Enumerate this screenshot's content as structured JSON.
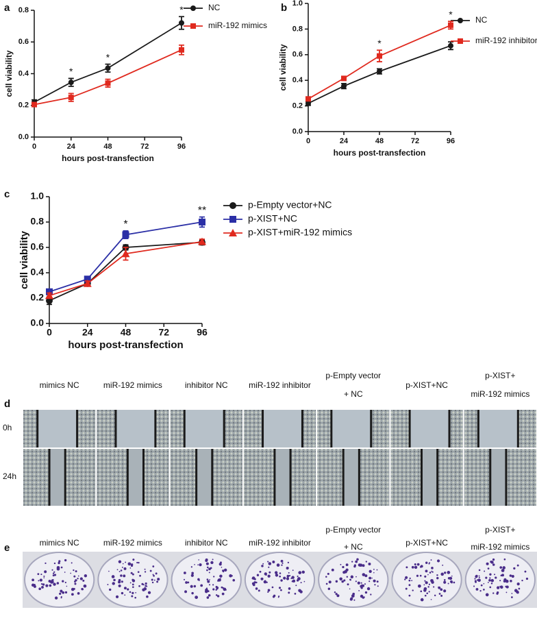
{
  "chart_data": [
    {
      "type": "line",
      "panel": "a",
      "xlabel": "hours post-transfection",
      "ylabel": "cell viability",
      "x": [
        0,
        24,
        48,
        96
      ],
      "xlim": [
        0,
        96
      ],
      "xticks": [
        0,
        24,
        48,
        72,
        96
      ],
      "ylim": [
        0,
        0.8
      ],
      "yticks": [
        {
          "value": 0,
          "label": "0.0"
        },
        0.2,
        0.4,
        0.6,
        0.8
      ],
      "series": [
        {
          "name": "NC",
          "color": "#1a1a1a",
          "marker": "circle",
          "values": [
            0.22,
            0.345,
            0.435,
            0.72
          ],
          "errors": [
            0.015,
            0.025,
            0.025,
            0.04
          ]
        },
        {
          "name": "miR-192 mimics",
          "color": "#e02a1f",
          "marker": "square",
          "values": [
            0.205,
            0.25,
            0.34,
            0.55
          ],
          "errors": [
            0.01,
            0.025,
            0.025,
            0.03
          ]
        }
      ],
      "annotations": [
        {
          "text": "*",
          "x": 24
        },
        {
          "text": "*",
          "x": 48
        },
        {
          "text": "*",
          "x": 96
        }
      ]
    },
    {
      "type": "line",
      "panel": "b",
      "xlabel": "hours post-transfection",
      "ylabel": "cell viability",
      "x": [
        0,
        24,
        48,
        96
      ],
      "xlim": [
        0,
        96
      ],
      "xticks": [
        0,
        24,
        48,
        72,
        96
      ],
      "ylim": [
        0,
        1
      ],
      "yticks": [
        {
          "value": 0,
          "label": "0.0"
        },
        0.2,
        0.4,
        0.6,
        0.8,
        {
          "value": 1,
          "label": "1.0"
        }
      ],
      "series": [
        {
          "name": "NC",
          "color": "#1a1a1a",
          "marker": "circle",
          "values": [
            0.22,
            0.355,
            0.47,
            0.67
          ],
          "errors": [
            0.015,
            0.02,
            0.02,
            0.03
          ]
        },
        {
          "name": "miR-192 inhibitor",
          "color": "#e02a1f",
          "marker": "square",
          "values": [
            0.255,
            0.415,
            0.59,
            0.83
          ],
          "errors": [
            0.01,
            0.01,
            0.045,
            0.03
          ]
        }
      ],
      "annotations": [
        {
          "text": "*",
          "x": 48
        },
        {
          "text": "*",
          "x": 96
        }
      ]
    },
    {
      "type": "line",
      "panel": "c",
      "xlabel": "hours post-transfection",
      "ylabel": "cell viability",
      "x": [
        0,
        24,
        48,
        96
      ],
      "xlim": [
        0,
        96
      ],
      "xticks": [
        0,
        24,
        48,
        72,
        96
      ],
      "ylim": [
        0,
        1
      ],
      "yticks": [
        {
          "value": 0,
          "label": "0.0"
        },
        0.2,
        0.4,
        0.6,
        0.8,
        {
          "value": 1,
          "label": "1.0"
        }
      ],
      "series": [
        {
          "name": "p-Empty vector+NC",
          "color": "#1a1a1a",
          "marker": "circle",
          "values": [
            0.18,
            0.315,
            0.6,
            0.64
          ],
          "errors": [
            0.03,
            0.02,
            0.02,
            0.02
          ]
        },
        {
          "name": "p-XIST+NC",
          "color": "#2b2fa6",
          "marker": "square",
          "values": [
            0.25,
            0.35,
            0.7,
            0.8
          ],
          "errors": [
            0.015,
            0.02,
            0.03,
            0.04
          ]
        },
        {
          "name": "p-XIST+miR-192 mimics",
          "color": "#e02a1f",
          "marker": "triangle",
          "values": [
            0.22,
            0.315,
            0.55,
            0.645
          ],
          "errors": [
            0.02,
            0.02,
            0.05,
            0.02
          ]
        }
      ],
      "annotations": [
        {
          "text": "*",
          "x": 48
        },
        {
          "text": "**",
          "x": 96
        }
      ]
    }
  ],
  "migration": {
    "panel": "d",
    "rows": [
      "0h",
      "24h"
    ],
    "columns": [
      [
        "mimics NC"
      ],
      [
        "miR-192 mimics"
      ],
      [
        "inhibitor NC"
      ],
      [
        "miR-192 inhibitor"
      ],
      [
        "p-Empty vector",
        "+ NC"
      ],
      [
        "p-XIST+NC"
      ],
      [
        "p-XIST+",
        "miR-192 mimics"
      ]
    ]
  },
  "colony": {
    "panel": "e",
    "columns": [
      [
        "mimics NC"
      ],
      [
        "miR-192 mimics"
      ],
      [
        "inhibitor NC"
      ],
      [
        "miR-192 inhibitor"
      ],
      [
        "p-Empty vector",
        "+ NC"
      ],
      [
        "p-XIST+NC"
      ],
      [
        "p-XIST+",
        "miR-192 mimics"
      ]
    ]
  }
}
